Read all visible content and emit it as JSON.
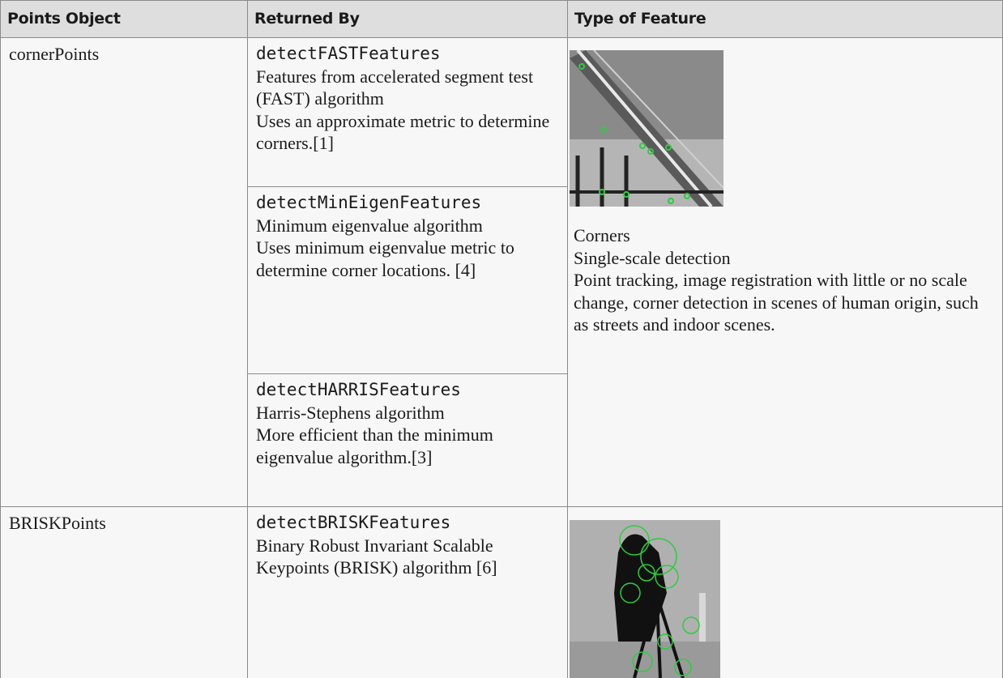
{
  "table": {
    "header": [
      "Points Object",
      "Returned By",
      "Type of Feature"
    ],
    "rows": [
      {
        "object": "cornerPoints",
        "methods": [
          {
            "function": "detectFASTFeatures",
            "lines": [
              "Features from accelerated segment test (FAST) algorithm",
              "Uses an approximate metric to determine corners.[1]"
            ]
          },
          {
            "function": "detectMinEigenFeatures",
            "lines": [
              "Minimum eigenvalue algorithm",
              "Uses minimum eigenvalue metric to determine corner locations. [4]"
            ]
          },
          {
            "function": "detectHARRISFeatures",
            "lines": [
              "Harris-Stephens algorithm",
              "More efficient than the minimum eigenvalue algorithm.[3]"
            ]
          }
        ],
        "feature": [
          "Corners",
          "Single-scale detection",
          "Point tracking, image registration with little or no scale change, corner detection in scenes of human origin, such as streets and indoor scenes."
        ]
      },
      {
        "object": "BRISKPoints",
        "methods": [
          {
            "function": "detectBRISKFeatures",
            "lines": [
              "Binary Robust Invariant Scalable Keypoints (BRISK) algorithm [6]"
            ]
          }
        ]
      }
    ]
  }
}
